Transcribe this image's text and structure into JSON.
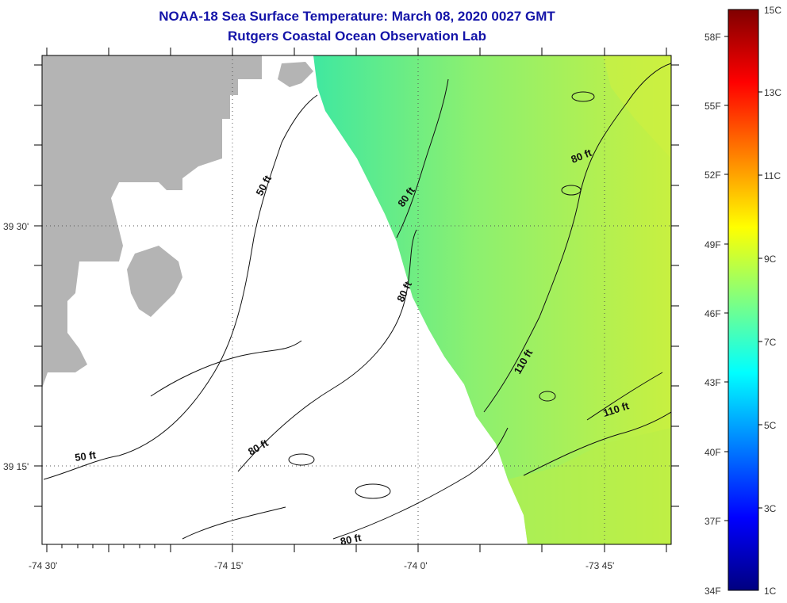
{
  "title": "NOAA-18 Sea Surface Temperature:  March 08, 2020 0027 GMT",
  "subtitle": "Rutgers Coastal Ocean Observation Lab",
  "map": {
    "lat_labels": [
      "39 30'",
      "39 15'"
    ],
    "lon_labels": [
      "-74 30'",
      "-74 15'",
      "-74 0'",
      "-73 45'"
    ],
    "contour_labels": [
      "50 ft",
      "50 ft",
      "80 ft",
      "80 ft",
      "80 ft",
      "80 ft",
      "80 ft",
      "110 ft",
      "110 ft"
    ],
    "colors": {
      "land": "#b4b4b4",
      "no_data": "#ffffff",
      "sst_near": "#40e8a0",
      "sst_mid": "#8cf070",
      "sst_far": "#c8f040"
    }
  },
  "colorbar": {
    "f_labels": [
      "58F",
      "55F",
      "52F",
      "49F",
      "46F",
      "43F",
      "40F",
      "37F",
      "34F"
    ],
    "c_labels": [
      "15C",
      "13C",
      "11C",
      "9C",
      "7C",
      "5C",
      "3C",
      "1C"
    ],
    "stops": [
      "#000080",
      "#0000ff",
      "#0080ff",
      "#00ffff",
      "#80ff80",
      "#ffff00",
      "#ff8000",
      "#ff0000",
      "#800000"
    ]
  }
}
